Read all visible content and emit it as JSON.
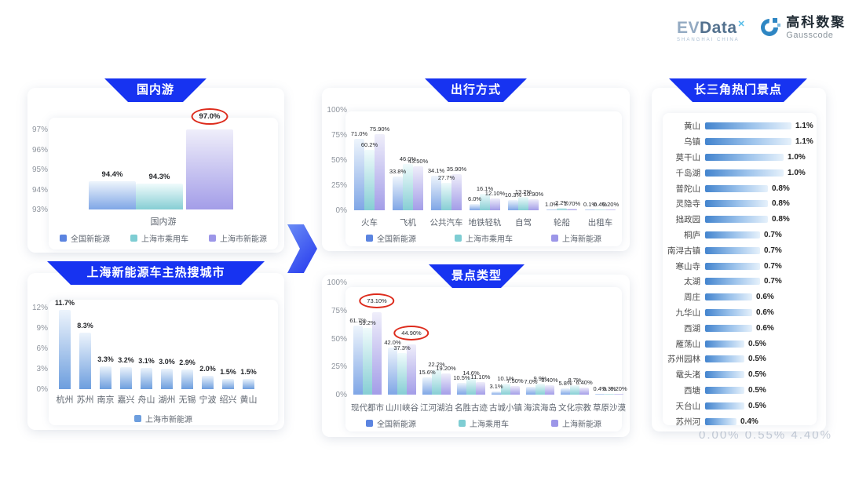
{
  "brand": {
    "evdata_ev": "EV",
    "evdata_data": "Data",
    "evdata_sup": "✕",
    "evdata_tagline": "SHANGHAI CHINA",
    "gauss_cn": "高科数聚",
    "gauss_en": "Gausscode"
  },
  "ghost_text": "0.00%  0.55%  4.40%",
  "colors": {
    "banner_blue": "#1733f1",
    "series_blue": "#5b84e0",
    "series_cyan": "#7ecdd3",
    "series_purple": "#9c96e8",
    "city_blue": "#6d9ede",
    "annotation_red": "#dd2b1c"
  },
  "chart_data": [
    {
      "id": "domestic",
      "type": "bar",
      "title": "国内游",
      "xlabel": "国内游",
      "categories": [
        "全国新能源",
        "上海市乘用车",
        "上海市新能源"
      ],
      "values": [
        94.4,
        94.3,
        97.0
      ],
      "labels": [
        "94.4%",
        "94.3%",
        "97.0%"
      ],
      "circled": [
        2
      ],
      "yticks": [
        "93%",
        "94%",
        "95%",
        "96%",
        "97%"
      ],
      "ylim": [
        93,
        97
      ],
      "legend": [
        "全国新能源",
        "上海市乘用车",
        "上海市新能源"
      ],
      "grid": false,
      "legend_position": "bottom"
    },
    {
      "id": "cities",
      "type": "bar",
      "title": "上海新能源车主热搜城市",
      "categories": [
        "杭州",
        "苏州",
        "南京",
        "嘉兴",
        "舟山",
        "湖州",
        "无锡",
        "宁波",
        "绍兴",
        "黄山"
      ],
      "values": [
        11.7,
        8.3,
        3.3,
        3.2,
        3.1,
        3.0,
        2.9,
        2.0,
        1.5,
        1.5
      ],
      "labels": [
        "11.7%",
        "8.3%",
        "3.3%",
        "3.2%",
        "3.1%",
        "3.0%",
        "2.9%",
        "2.0%",
        "1.5%",
        "1.5%"
      ],
      "yticks": [
        "0%",
        "3%",
        "6%",
        "9%",
        "12%"
      ],
      "ylim": [
        0,
        12
      ],
      "legend": [
        "上海市新能源"
      ],
      "grid": false,
      "legend_position": "bottom"
    },
    {
      "id": "modes",
      "type": "bar",
      "title": "出行方式",
      "categories": [
        "火车",
        "飞机",
        "公共汽车",
        "地铁轻轨",
        "自驾",
        "轮船",
        "出租车"
      ],
      "series": [
        {
          "name": "全国新能源",
          "values": [
            71.0,
            33.8,
            34.1,
            6.0,
            10.3,
            1.0,
            0.1
          ],
          "labels": [
            "71.0%",
            "33.8%",
            "34.1%",
            "6.0%",
            "10.3%",
            "1.0%",
            "0.1%"
          ]
        },
        {
          "name": "上海市乘用车",
          "values": [
            60.2,
            46.0,
            27.7,
            16.1,
            13.2,
            2.2,
            0.4
          ],
          "labels": [
            "60.2%",
            "46.0%",
            "27.7%",
            "16.1%",
            "13.2%",
            "2.2%",
            "0.4%"
          ]
        },
        {
          "name": "上海新能源",
          "values": [
            75.9,
            43.5,
            35.9,
            12.1,
            10.9,
            1.7,
            0.2
          ],
          "labels": [
            "75.90%",
            "43.50%",
            "35.90%",
            "12.10%",
            "10.90%",
            "1.70%",
            "0.20%"
          ]
        }
      ],
      "yticks": [
        "0%",
        "25%",
        "50%",
        "75%",
        "100%"
      ],
      "ylim": [
        0,
        100
      ],
      "grid": false,
      "legend_position": "bottom"
    },
    {
      "id": "attractions",
      "type": "bar",
      "title": "景点类型",
      "categories": [
        "现代都市",
        "山川峡谷",
        "江河湖泊",
        "名胜古迹",
        "古城小镇",
        "海滨海岛",
        "文化宗教",
        "草原沙漠"
      ],
      "series": [
        {
          "name": "全国新能源",
          "values": [
            61.7,
            42.0,
            15.6,
            10.5,
            3.1,
            7.0,
            5.8,
            0.4
          ],
          "labels": [
            "61.7%",
            "42.0%",
            "15.6%",
            "10.5%",
            "3.1%",
            "7.0%",
            "5.8%",
            "0.4%"
          ]
        },
        {
          "name": "上海乘用车",
          "values": [
            59.2,
            37.3,
            22.2,
            14.6,
            10.1,
            9.9,
            8.7,
            0.3
          ],
          "labels": [
            "59.2%",
            "37.3%",
            "22.2%",
            "14.6%",
            "10.1%",
            "9.9%",
            "8.7%",
            "0.3%"
          ]
        },
        {
          "name": "上海新能源",
          "values": [
            73.1,
            44.9,
            19.2,
            11.1,
            7.5,
            8.4,
            6.4,
            0.2
          ],
          "labels": [
            "73.10%",
            "44.90%",
            "19.20%",
            "11.10%",
            "7.50%",
            "8.40%",
            "6.40%",
            "0.20%"
          ],
          "circled": [
            0,
            1
          ]
        }
      ],
      "yticks": [
        "0%",
        "25%",
        "50%",
        "75%",
        "100%"
      ],
      "ylim": [
        0,
        100
      ],
      "grid": false,
      "legend_position": "bottom"
    },
    {
      "id": "hotspots",
      "type": "bar",
      "orientation": "horizontal",
      "title": "长三角热门景点",
      "categories": [
        "黄山",
        "乌镇",
        "莫干山",
        "千岛湖",
        "普陀山",
        "灵隐寺",
        "拙政园",
        "桐庐",
        "南浔古镇",
        "寒山寺",
        "太湖",
        "周庄",
        "九华山",
        "西湖",
        "雁荡山",
        "苏州园林",
        "鼋头渚",
        "西塘",
        "天台山",
        "苏州河"
      ],
      "values": [
        1.1,
        1.1,
        1.0,
        1.0,
        0.8,
        0.8,
        0.8,
        0.7,
        0.7,
        0.7,
        0.7,
        0.6,
        0.6,
        0.6,
        0.5,
        0.5,
        0.5,
        0.5,
        0.5,
        0.4
      ],
      "labels": [
        "1.1%",
        "1.1%",
        "1.0%",
        "1.0%",
        "0.8%",
        "0.8%",
        "0.8%",
        "0.7%",
        "0.7%",
        "0.7%",
        "0.7%",
        "0.6%",
        "0.6%",
        "0.6%",
        "0.5%",
        "0.5%",
        "0.5%",
        "0.5%",
        "0.5%",
        "0.4%"
      ],
      "xlim": [
        0,
        1.2
      ],
      "grid": false
    }
  ]
}
